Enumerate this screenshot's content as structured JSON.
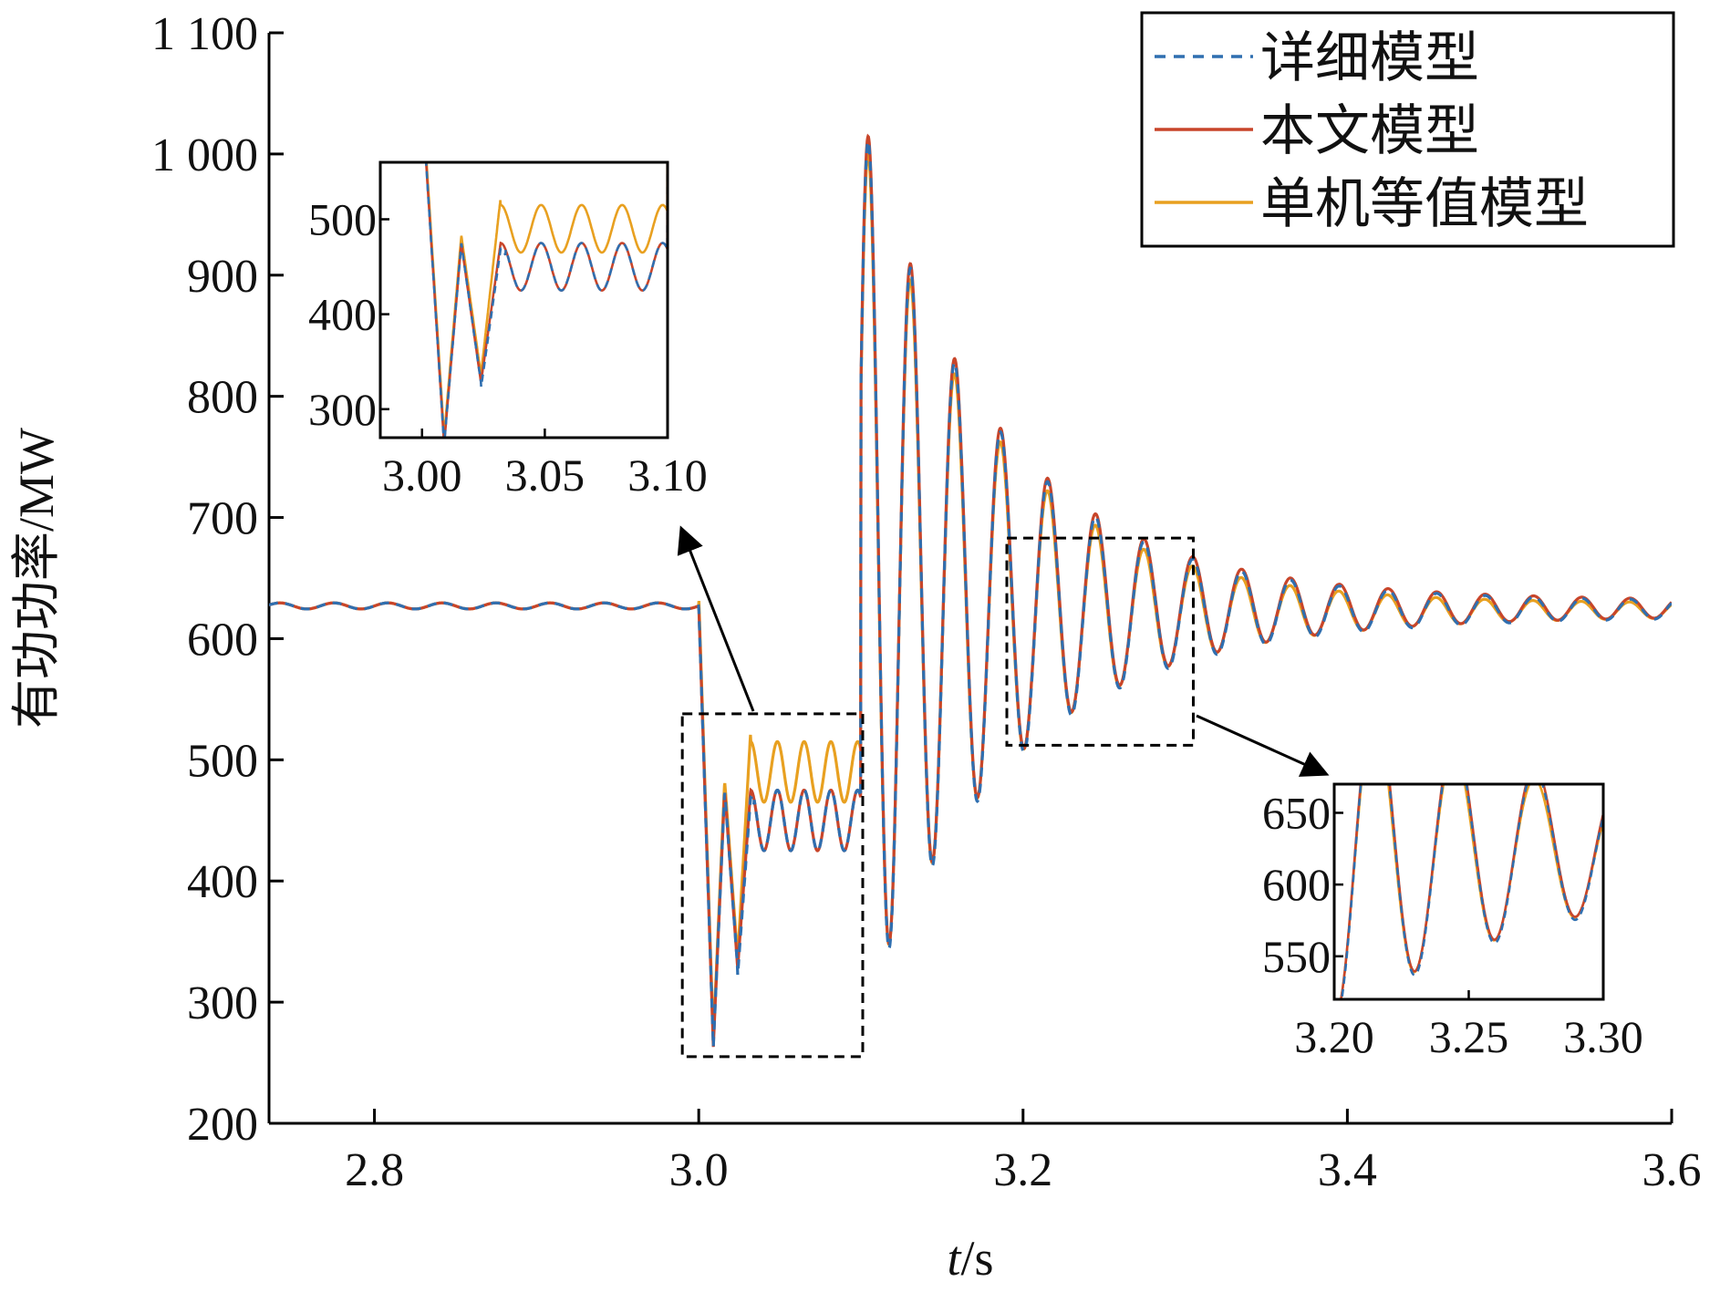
{
  "chart_data": {
    "type": "line",
    "xlabel_var": "t",
    "xlabel_unit": "/s",
    "ylabel": "有功功率/MW",
    "xlim": [
      2.735,
      3.6
    ],
    "ylim": [
      200,
      1100
    ],
    "xticks": [
      "2.8",
      "3.0",
      "3.2",
      "3.4",
      "3.6"
    ],
    "yticks": [
      "200",
      "300",
      "400",
      "500",
      "600",
      "700",
      "800",
      "900",
      "1 000",
      "1 100"
    ],
    "grid": false,
    "legend_position": "top-right",
    "legend": [
      {
        "name": "详细模型",
        "color": "#2f6fb0",
        "style": "dashed"
      },
      {
        "name": "本文模型",
        "color": "#c8452a",
        "style": "solid"
      },
      {
        "name": "单机等值模型",
        "color": "#e8a020",
        "style": "solid"
      }
    ],
    "disturbance": {
      "steady_state_value": 627,
      "fault_start": 3.0,
      "fault_clear": 3.1,
      "fault_min": 263,
      "fault_plateau": {
        "详细模型": 450,
        "本文模型": 450,
        "单机等值模型": 490
      },
      "post_clear_peak": 1030,
      "post_clear_min": 325,
      "final_value": 625
    },
    "insets": [
      {
        "region": {
          "xlim": [
            3.0,
            3.1
          ],
          "ylim": [
            255,
            538
          ]
        },
        "xlim": [
          2.983,
          3.1
        ],
        "ylim": [
          270,
          560
        ],
        "xticks": [
          "3.00",
          "3.05",
          "3.10"
        ],
        "yticks": [
          "300",
          "400",
          "500"
        ],
        "placement": "upper-left"
      },
      {
        "region": {
          "xlim": [
            3.19,
            3.305
          ],
          "ylim": [
            512,
            683
          ]
        },
        "xlim": [
          3.2,
          3.3
        ],
        "ylim": [
          520,
          670
        ],
        "xticks": [
          "3.20",
          "3.25",
          "3.30"
        ],
        "yticks": [
          "550",
          "600",
          "650"
        ],
        "placement": "lower-right"
      }
    ]
  }
}
